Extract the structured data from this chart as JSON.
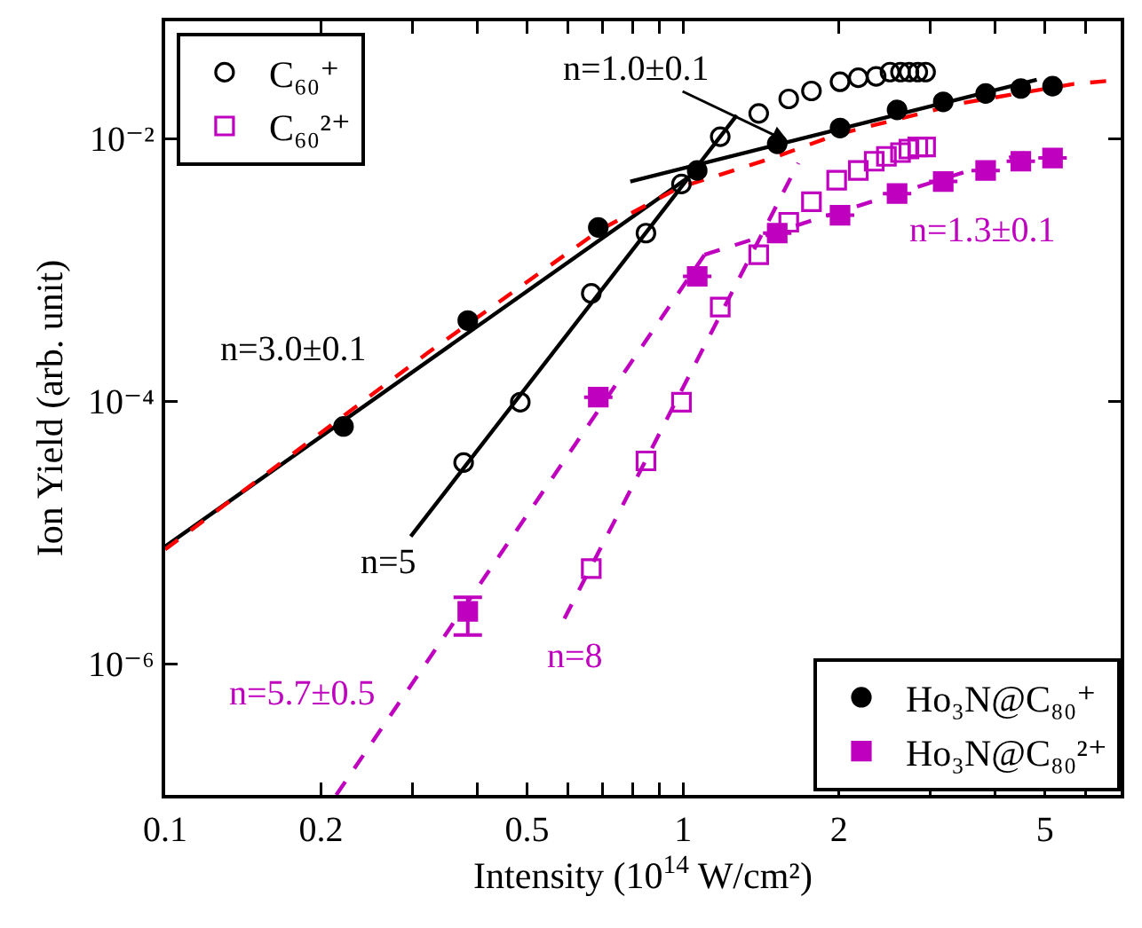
{
  "chart_data": {
    "type": "scatter",
    "xlabel": "Intensity (10$^{14}$ W/cm²)",
    "ylabel": "Ion Yield (arb. unit)",
    "log": "xy",
    "xlim": [
      0.1,
      7
    ],
    "ylim": [
      1e-07,
      0.078
    ],
    "xticks": [
      0.1,
      0.2,
      {
        "value": 0.3,
        "label": null
      },
      {
        "value": 0.4,
        "label": null
      },
      0.5,
      {
        "value": 0.6,
        "label": null
      },
      {
        "value": 0.7,
        "label": null
      },
      {
        "value": 0.8,
        "label": null
      },
      {
        "value": 0.9,
        "label": null
      },
      1,
      2,
      {
        "value": 3,
        "label": null
      },
      {
        "value": 4,
        "label": null
      },
      5,
      {
        "value": 6,
        "label": null
      },
      {
        "value": 7,
        "label": null
      }
    ],
    "yticks": [
      {
        "value": 0.01,
        "label": "10⁻²"
      },
      {
        "value": 0.0001,
        "label": "10⁻⁴"
      },
      {
        "value": 1e-06,
        "label": "10⁻⁶"
      }
    ],
    "legend": [
      "top left",
      "bottom right"
    ],
    "series": [
      {
        "type": "line",
        "color": "#000000",
        "line_style": "solid",
        "marker": "none",
        "x": [
          0.1,
          1.07
        ],
        "values": [
          7.8e-06,
          0.0057
        ]
      },
      {
        "type": "line",
        "color": "#000000",
        "line_style": "solid",
        "marker": "none",
        "x": [
          0.791,
          4.82
        ],
        "values": [
          0.0047,
          0.028
        ]
      },
      {
        "type": "line",
        "color": "#000000",
        "line_style": "solid",
        "marker": "none",
        "x": [
          0.298,
          1.27
        ],
        "values": [
          9.3e-06,
          0.015
        ]
      },
      {
        "type": "line",
        "color": "#ff0000",
        "line_style": "dashed",
        "marker": "none",
        "x": [
          0.1,
          0.32,
          0.69,
          0.98,
          1.49,
          1.98,
          3.46,
          5.68,
          7
        ],
        "values": [
          7.4e-06,
          0.00023,
          0.002,
          0.0042,
          0.0071,
          0.0107,
          0.0186,
          0.026,
          0.028
        ]
      },
      {
        "type": "line",
        "color": "#bf00bf",
        "line_style": "dashed",
        "marker": "none",
        "x": [
          0.214,
          1.1
        ],
        "values": [
          1e-07,
          0.0013
        ]
      },
      {
        "type": "line",
        "color": "#bf00bf",
        "line_style": "dashed",
        "marker": "none",
        "x": [
          1.1,
          4.82
        ],
        "values": [
          0.0013,
          0.0083
        ]
      },
      {
        "type": "line",
        "color": "#bf00bf",
        "line_style": "dashed",
        "marker": "none",
        "x": [
          0.59,
          1.67
        ],
        "values": [
          2.2e-06,
          0.0065
        ]
      },
      {
        "name": "C₆₀⁺",
        "color": "#000000",
        "marker": "circle-open",
        "x": [
          0.377,
          0.485,
          0.665,
          0.848,
          0.993,
          1.18,
          1.4,
          1.6,
          1.77,
          2.01,
          2.18,
          2.36,
          2.51,
          2.63,
          2.73,
          2.84,
          2.94
        ],
        "values": [
          3.4e-05,
          9.8e-05,
          0.00066,
          0.0019,
          0.0045,
          0.0103,
          0.0155,
          0.02,
          0.023,
          0.027,
          0.029,
          0.0297,
          0.032,
          0.032,
          0.032,
          0.032,
          0.032
        ]
      },
      {
        "name": "C₆₀²⁺",
        "color": "#bf00bf",
        "marker": "square-open",
        "x": [
          0.665,
          0.848,
          0.993,
          1.18,
          1.4,
          1.6,
          1.77,
          1.98,
          2.18,
          2.34,
          2.47,
          2.63,
          2.73,
          2.84,
          2.94
        ],
        "values": [
          5.3e-06,
          3.5e-05,
          9.8e-05,
          0.00052,
          0.0013,
          0.0023,
          0.0033,
          0.0048,
          0.0057,
          0.0067,
          0.0073,
          0.0078,
          0.0083,
          0.0086,
          0.0086
        ]
      },
      {
        "name": "Ho₃N@C₈₀⁺",
        "color": "#000000",
        "marker": "circle",
        "x": [
          0.221,
          0.384,
          0.686,
          1.065,
          1.52,
          2.01,
          2.59,
          3.18,
          3.84,
          4.49,
          5.17
        ],
        "values": [
          6.4e-05,
          0.00041,
          0.0021,
          0.0057,
          0.0091,
          0.012,
          0.0165,
          0.019,
          0.022,
          0.024,
          0.025
        ]
      },
      {
        "name": "Ho₃N@C₈₀²⁺",
        "color": "#bf00bf",
        "marker": "square",
        "x": [
          0.384,
          0.686,
          1.065,
          1.52,
          2.01,
          2.59,
          3.18,
          3.84,
          4.49,
          5.17
        ],
        "values": [
          2.5e-06,
          0.000107,
          0.00089,
          0.0019,
          0.0026,
          0.0038,
          0.0047,
          0.0057,
          0.0067,
          0.0071
        ],
        "errors": [
          [
            1.65e-06,
            3.2e-06
          ],
          null,
          null,
          null,
          null,
          null,
          null,
          null,
          null,
          null
        ]
      }
    ],
    "annotations": [
      {
        "text": "n=3.0±0.1",
        "x": 0.2,
        "y": 5.4e-05
      },
      {
        "text": "n=5",
        "x": 0.298,
        "y": 9.3e-06
      },
      {
        "text": "n=5.7±0.5",
        "x": 0.25,
        "y": 2.37e-07
      },
      {
        "text": "n=8",
        "x": 0.59,
        "y": 2.2e-06
      },
      {
        "text": "n=1.3±0.1",
        "x": 4.82,
        "y": 0.0083
      },
      {
        "text": "n=1.0±0.1",
        "x": 1.6,
        "y": 0.0094
      }
    ]
  }
}
